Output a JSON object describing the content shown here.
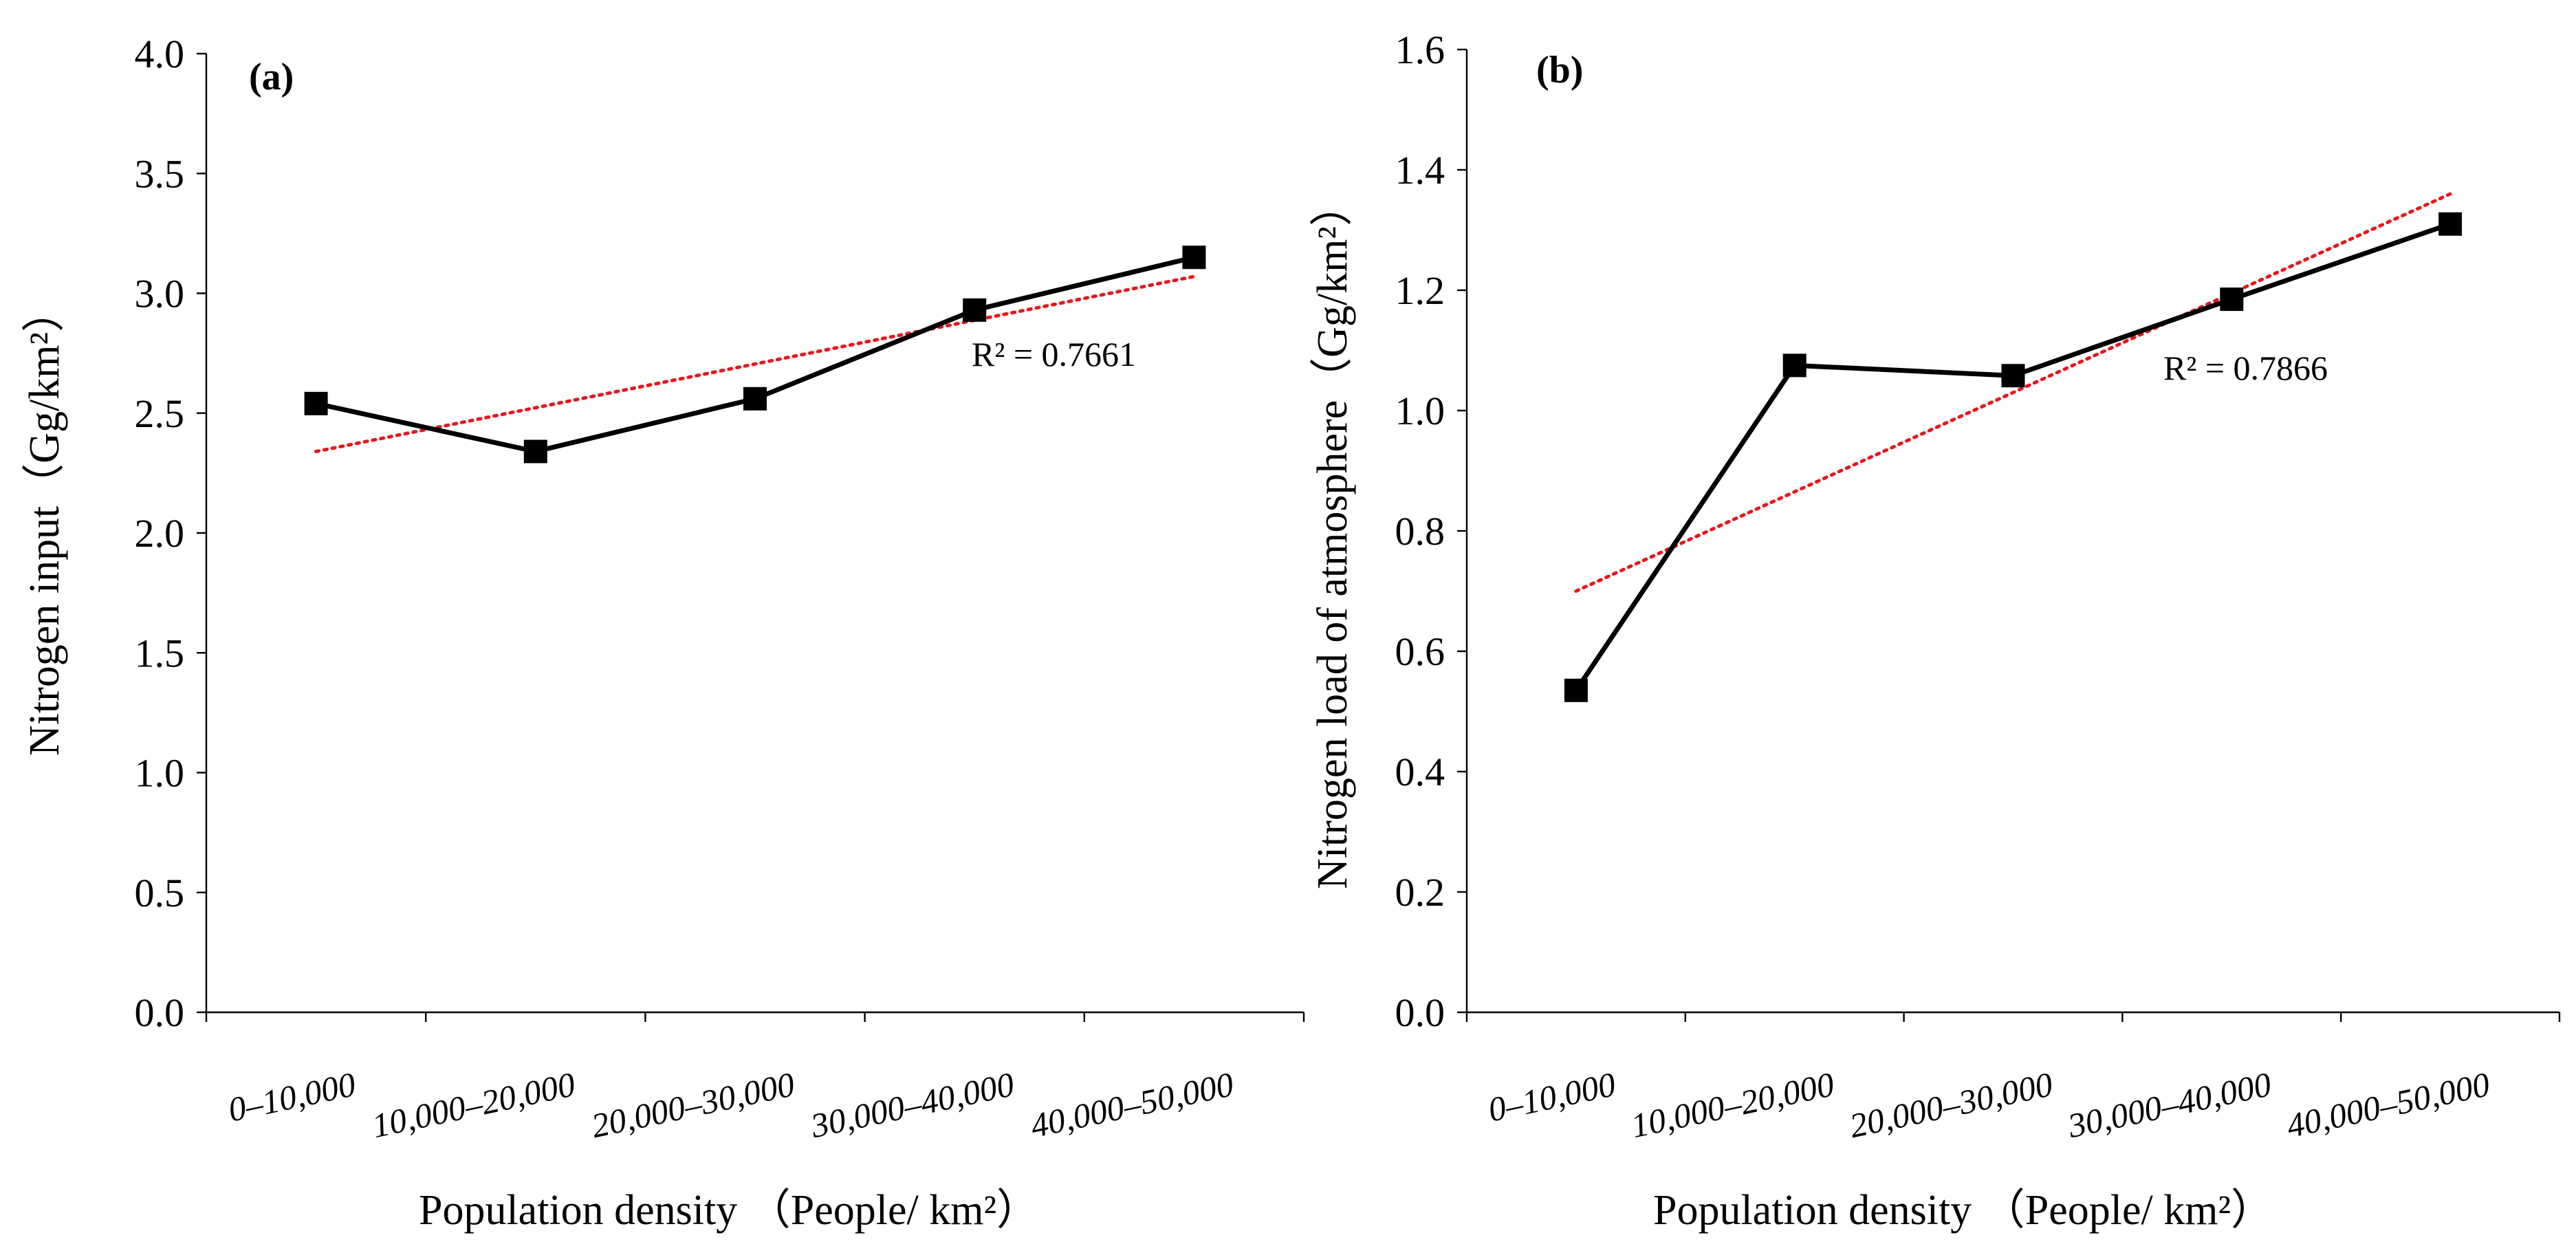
{
  "chart_data": [
    {
      "type": "line",
      "panel_label": "(a)",
      "title": "",
      "xlabel": "Population density （People/ km²）",
      "ylabel": "Nitrogen input（Gg/km²）",
      "categories": [
        "0–10,000",
        "10,000–20,000",
        "20,000–30,000",
        "30,000–40,000",
        "40,000–50,000"
      ],
      "series": [
        {
          "name": "Nitrogen input",
          "values": [
            2.54,
            2.34,
            2.56,
            2.93,
            3.15
          ],
          "marker": "square",
          "color": "#000000"
        }
      ],
      "trendline": {
        "type": "linear",
        "start": 2.34,
        "end": 3.07,
        "r2_label": "R² = 0.7661",
        "color": "#e8151b"
      },
      "ylim": [
        0,
        4.0
      ],
      "yticks": [
        "0.0",
        "0.5",
        "1.0",
        "1.5",
        "2.0",
        "2.5",
        "3.0",
        "3.5",
        "4.0"
      ],
      "grid": false
    },
    {
      "type": "line",
      "panel_label": "(b)",
      "title": "",
      "xlabel": "Population density （People/ km²）",
      "ylabel": "Nitrogen load of atmosphere（Gg/km²）",
      "categories": [
        "0–10,000",
        "10,000–20,000",
        "20,000–30,000",
        "30,000–40,000",
        "40,000–50,000"
      ],
      "series": [
        {
          "name": "Nitrogen load of atmosphere",
          "values": [
            0.535,
            1.075,
            1.058,
            1.185,
            1.31
          ],
          "marker": "square",
          "color": "#000000"
        }
      ],
      "trendline": {
        "type": "linear",
        "start": 0.7,
        "end": 1.36,
        "r2_label": "R² = 0.7866",
        "color": "#e8151b"
      },
      "ylim": [
        0,
        1.6
      ],
      "yticks": [
        "0.0",
        "0.2",
        "0.4",
        "0.6",
        "0.8",
        "1.0",
        "1.2",
        "1.4",
        "1.6"
      ],
      "grid": false
    }
  ]
}
